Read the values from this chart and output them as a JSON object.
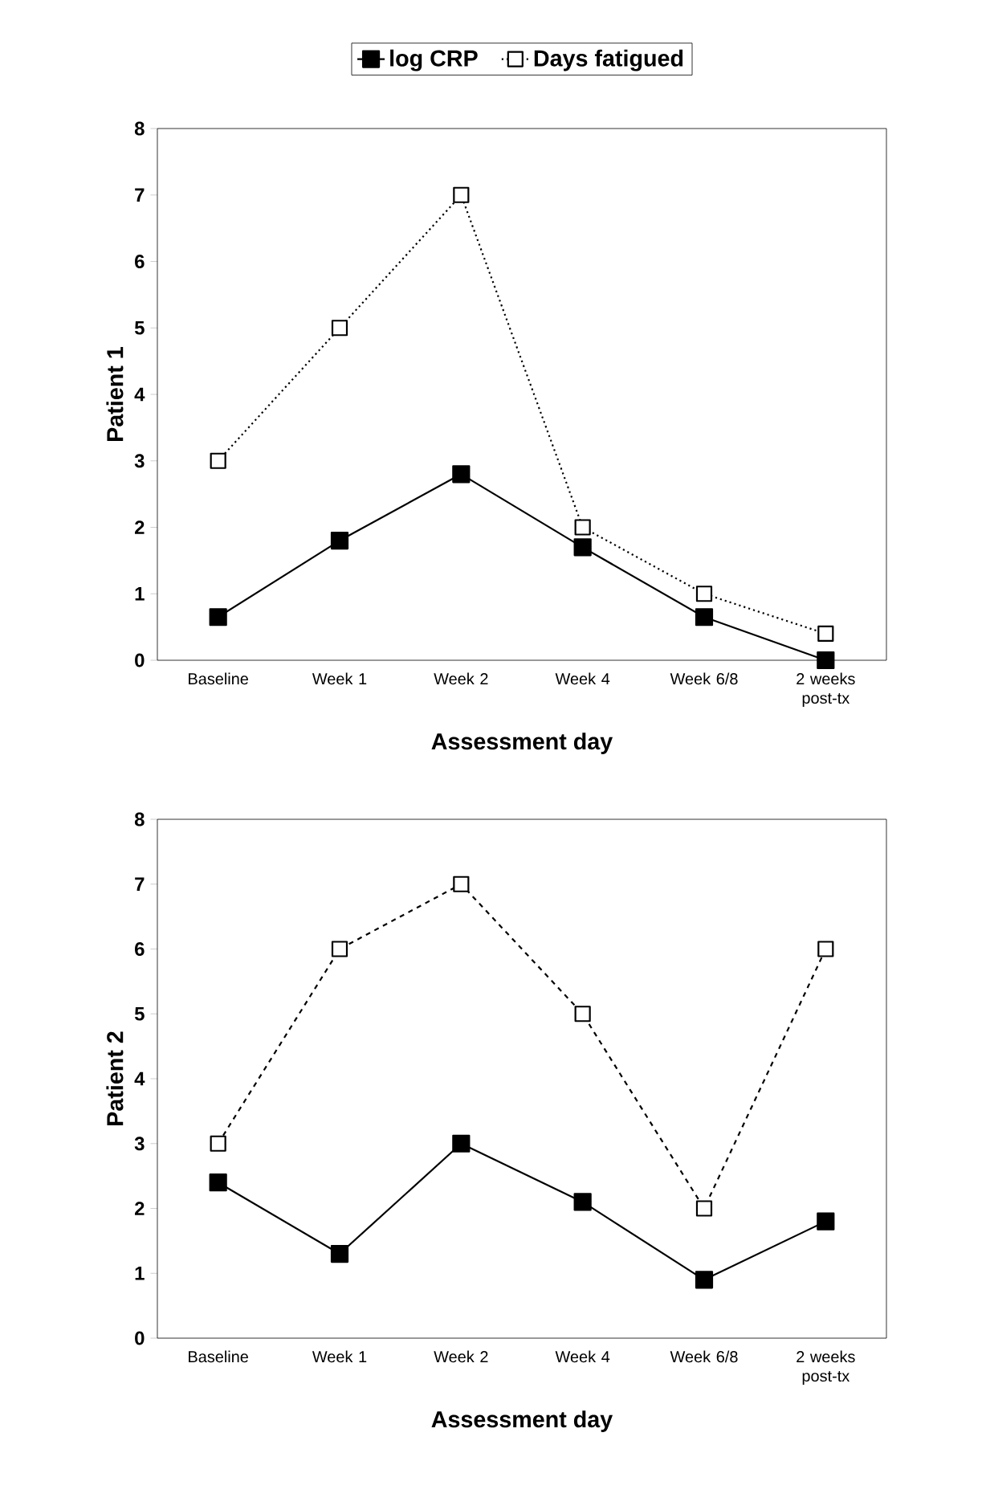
{
  "chart_data": [
    {
      "type": "line",
      "ylabel": "Patient 1",
      "xlabel": "Assessment day",
      "categories": [
        "Baseline",
        "Week 1",
        "Week 2",
        "Week 4",
        "Week 6/8",
        "2 weeks post-tx"
      ],
      "ylim": [
        0,
        8
      ],
      "yticks": [
        0,
        1,
        2,
        3,
        4,
        5,
        6,
        7,
        8
      ],
      "marker": "square",
      "legend": "top",
      "series": [
        {
          "name": "log CRP",
          "color": "#000000",
          "line_style": "solid",
          "values": [
            0.65,
            1.8,
            2.8,
            1.7,
            0.65,
            0.0
          ]
        },
        {
          "name": "Days fatigued",
          "color": "#000000",
          "line_style": "dotted",
          "values": [
            3,
            5,
            7,
            2,
            1,
            0.4
          ]
        }
      ]
    },
    {
      "type": "line",
      "ylabel": "Patient 2",
      "xlabel": "Assessment day",
      "categories": [
        "Baseline",
        "Week 1",
        "Week 2",
        "Week 4",
        "Week 6/8",
        "2 weeks post-tx"
      ],
      "ylim": [
        0,
        8
      ],
      "yticks": [
        0,
        1,
        2,
        3,
        4,
        5,
        6,
        7,
        8
      ],
      "marker": "square",
      "series": [
        {
          "color": "#000000",
          "line_style": "solid",
          "values": [
            2.4,
            1.3,
            3.0,
            2.1,
            0.9,
            1.8
          ]
        },
        {
          "color": "#000000",
          "line_style": "dashed",
          "values": [
            3,
            6,
            7,
            5,
            2,
            6
          ]
        }
      ]
    }
  ]
}
